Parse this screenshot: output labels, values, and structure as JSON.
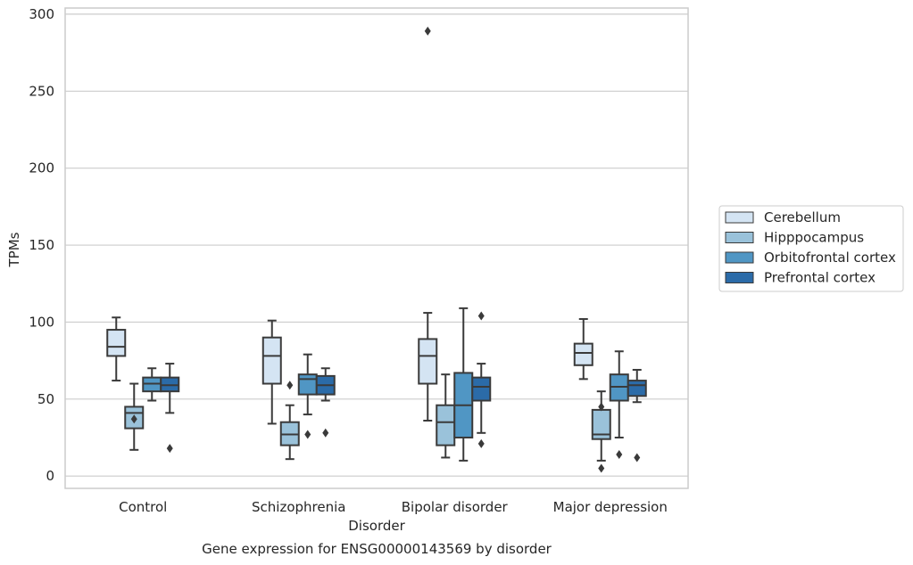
{
  "chart_data": {
    "type": "box",
    "title": "",
    "xlabel": "Disorder",
    "ylabel": "TPMs",
    "caption": "Gene expression for ENSG00000143569 by disorder",
    "ylim": [
      -8,
      304
    ],
    "yticks": [
      0,
      50,
      100,
      150,
      200,
      250,
      300
    ],
    "grid": "horizontal",
    "legend_position": "right",
    "categories": [
      "Control",
      "Schizophrenia",
      "Bipolar disorder",
      "Major depression"
    ],
    "series": [
      {
        "name": "Cerebellum",
        "color": "#d4e4f3",
        "boxes": [
          {
            "whislo": 62,
            "q1": 78,
            "med": 84,
            "q3": 95,
            "whishi": 103,
            "fliers": []
          },
          {
            "whislo": 34,
            "q1": 60,
            "med": 78,
            "q3": 90,
            "whishi": 101,
            "fliers": []
          },
          {
            "whislo": 36,
            "q1": 60,
            "med": 78,
            "q3": 89,
            "whishi": 106,
            "fliers": [
              289
            ]
          },
          {
            "whislo": 63,
            "q1": 72,
            "med": 80,
            "q3": 86,
            "whishi": 102,
            "fliers": []
          }
        ]
      },
      {
        "name": "Hipppocampus",
        "color": "#9ac2da",
        "boxes": [
          {
            "whislo": 17,
            "q1": 31,
            "med": 41,
            "q3": 45,
            "whishi": 60,
            "fliers": [
              37
            ]
          },
          {
            "whislo": 11,
            "q1": 20,
            "med": 27,
            "q3": 35,
            "whishi": 46,
            "fliers": [
              59
            ]
          },
          {
            "whislo": 12,
            "q1": 20,
            "med": 35,
            "q3": 46,
            "whishi": 66,
            "fliers": []
          },
          {
            "whislo": 10,
            "q1": 24,
            "med": 27,
            "q3": 43,
            "whishi": 55,
            "fliers": [
              45,
              5
            ]
          }
        ]
      },
      {
        "name": "Orbitofrontal cortex",
        "color": "#5096c4",
        "boxes": [
          {
            "whislo": 49,
            "q1": 55,
            "med": 60,
            "q3": 64,
            "whishi": 70,
            "fliers": []
          },
          {
            "whislo": 40,
            "q1": 53,
            "med": 63,
            "q3": 66,
            "whishi": 79,
            "fliers": [
              27
            ]
          },
          {
            "whislo": 10,
            "q1": 25,
            "med": 46,
            "q3": 67,
            "whishi": 109,
            "fliers": []
          },
          {
            "whislo": 25,
            "q1": 49,
            "med": 58,
            "q3": 66,
            "whishi": 81,
            "fliers": [
              14
            ]
          }
        ]
      },
      {
        "name": "Prefrontal cortex",
        "color": "#2b6ba8",
        "boxes": [
          {
            "whislo": 41,
            "q1": 55,
            "med": 59,
            "q3": 64,
            "whishi": 73,
            "fliers": [
              18
            ]
          },
          {
            "whislo": 49,
            "q1": 53,
            "med": 59,
            "q3": 65,
            "whishi": 70,
            "fliers": [
              28
            ]
          },
          {
            "whislo": 28,
            "q1": 49,
            "med": 58,
            "q3": 64,
            "whishi": 73,
            "fliers": [
              104,
              21
            ]
          },
          {
            "whislo": 48,
            "q1": 52,
            "med": 59,
            "q3": 62,
            "whishi": 69,
            "fliers": [
              12
            ]
          }
        ]
      }
    ]
  }
}
